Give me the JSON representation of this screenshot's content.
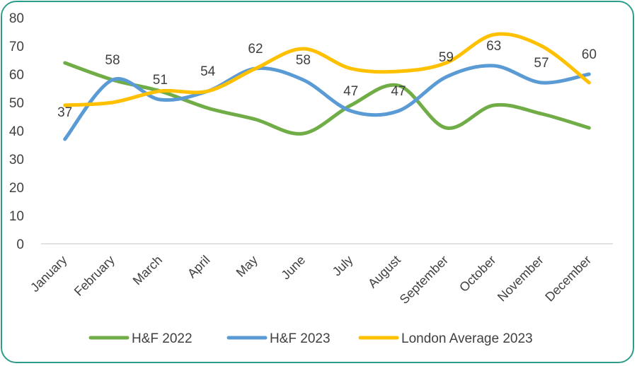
{
  "chart_data": {
    "type": "line",
    "title": "",
    "xlabel": "",
    "ylabel": "",
    "ylim": [
      0,
      80
    ],
    "yticks": [
      0,
      10,
      20,
      30,
      40,
      50,
      60,
      70,
      80
    ],
    "grid": false,
    "legend_position": "bottom",
    "smooth": true,
    "categories": [
      "January",
      "February",
      "March",
      "April",
      "May",
      "June",
      "July",
      "August",
      "September",
      "October",
      "November",
      "December"
    ],
    "series": [
      {
        "name": "H&F 2022",
        "color": "#70ad47",
        "values": [
          64,
          58,
          54,
          48,
          44,
          39,
          49,
          56,
          41,
          49,
          46,
          41
        ],
        "data_labels": false
      },
      {
        "name": "H&F 2023",
        "color": "#5b9bd5",
        "values": [
          37,
          58,
          51,
          54,
          62,
          58,
          47,
          47,
          59,
          63,
          57,
          60
        ],
        "data_labels": true
      },
      {
        "name": "London Average 2023",
        "color": "#ffc000",
        "values": [
          49,
          50,
          54,
          54,
          62,
          69,
          62,
          61,
          64,
          74,
          70,
          57
        ],
        "data_labels": false
      }
    ]
  }
}
